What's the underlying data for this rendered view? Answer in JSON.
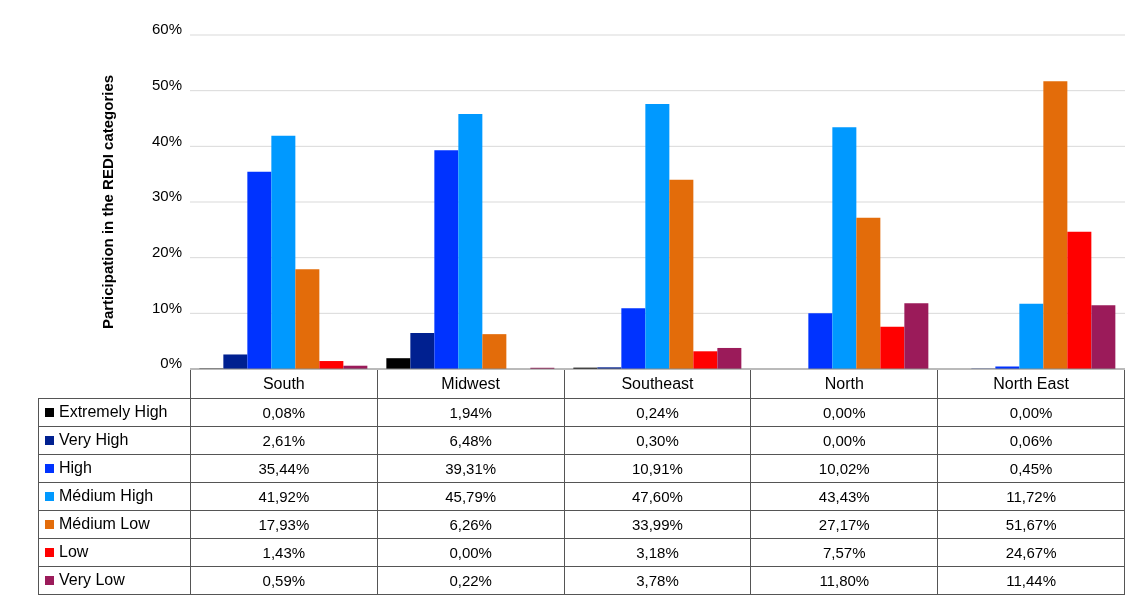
{
  "chart_data": {
    "type": "bar",
    "ylabel": "Participation in the REDI categories",
    "categories": [
      "South",
      "Midwest",
      "Southeast",
      "North",
      "North East"
    ],
    "ylim": [
      0,
      60
    ],
    "yticks": [
      {
        "value": 0,
        "label": "0%"
      },
      {
        "value": 10,
        "label": "10%"
      },
      {
        "value": 20,
        "label": "20%"
      },
      {
        "value": 30,
        "label": "30%"
      },
      {
        "value": 40,
        "label": "40%"
      },
      {
        "value": 50,
        "label": "50%"
      },
      {
        "value": 60,
        "label": "60%"
      }
    ],
    "grid": "y",
    "legend": "bottom",
    "series": [
      {
        "name": "Extremely High",
        "color": "#000000",
        "values": [
          0.08,
          1.94,
          0.24,
          0.0,
          0.0
        ],
        "value_labels": [
          "0,08%",
          "1,94%",
          "0,24%",
          "0,00%",
          "0,00%"
        ]
      },
      {
        "name": "Very High",
        "color": "#002090",
        "values": [
          2.61,
          6.48,
          0.3,
          0.0,
          0.06
        ],
        "value_labels": [
          "2,61%",
          "6,48%",
          "0,30%",
          "0,00%",
          "0,06%"
        ]
      },
      {
        "name": "High",
        "color": "#0033ff",
        "values": [
          35.44,
          39.31,
          10.91,
          10.02,
          0.45
        ],
        "value_labels": [
          "35,44%",
          "39,31%",
          "10,91%",
          "10,02%",
          "0,45%"
        ]
      },
      {
        "name": "Médium High",
        "color": "#0099ff",
        "values": [
          41.92,
          45.79,
          47.6,
          43.43,
          11.72
        ],
        "value_labels": [
          "41,92%",
          "45,79%",
          "47,60%",
          "43,43%",
          "11,72%"
        ]
      },
      {
        "name": "Médium Low",
        "color": "#e36c0a",
        "values": [
          17.93,
          6.26,
          33.99,
          27.17,
          51.67
        ],
        "value_labels": [
          "17,93%",
          "6,26%",
          "33,99%",
          "27,17%",
          "51,67%"
        ]
      },
      {
        "name": "Low",
        "color": "#ff0000",
        "values": [
          1.43,
          0.0,
          3.18,
          7.57,
          24.67
        ],
        "value_labels": [
          "1,43%",
          "0,00%",
          "3,18%",
          "7,57%",
          "24,67%"
        ]
      },
      {
        "name": "Very Low",
        "color": "#9b1b5a",
        "values": [
          0.59,
          0.22,
          3.78,
          11.8,
          11.44
        ],
        "value_labels": [
          "0,59%",
          "0,22%",
          "3,78%",
          "11,80%",
          "11,44%"
        ]
      }
    ]
  }
}
